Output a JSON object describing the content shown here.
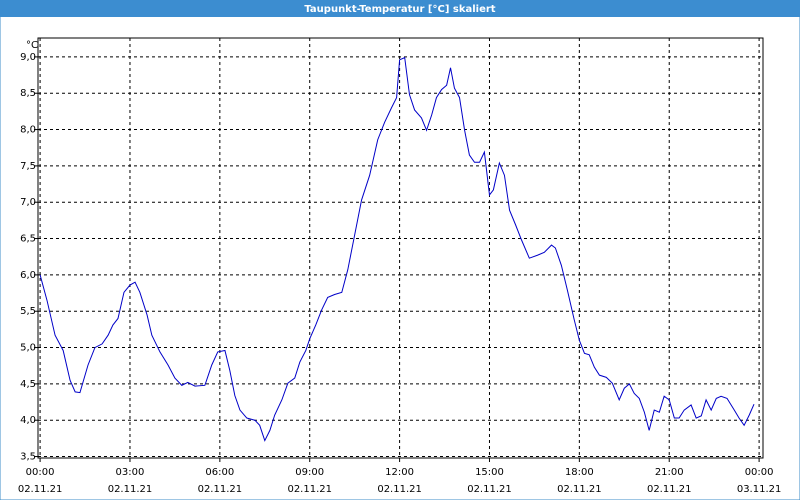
{
  "chart_data": {
    "type": "line",
    "title": "Taupunkt-Temperatur [°C] skaliert",
    "y_unit": "°C",
    "xlim": [
      -0.07,
      24.13
    ],
    "ylim": [
      3.48,
      9.26
    ],
    "xticks": [
      {
        "value": 0,
        "label": "00:00",
        "date": "02.11.21"
      },
      {
        "value": 3,
        "label": "03:00",
        "date": "02.11.21"
      },
      {
        "value": 6,
        "label": "06:00",
        "date": "02.11.21"
      },
      {
        "value": 9,
        "label": "09:00",
        "date": "02.11.21"
      },
      {
        "value": 12,
        "label": "12:00",
        "date": "02.11.21"
      },
      {
        "value": 15,
        "label": "15:00",
        "date": "02.11.21"
      },
      {
        "value": 18,
        "label": "18:00",
        "date": "02.11.21"
      },
      {
        "value": 21,
        "label": "21:00",
        "date": "02.11.21"
      },
      {
        "value": 24,
        "label": "00:00",
        "date": "03.11.21"
      }
    ],
    "yticks": [
      {
        "value": 3.5,
        "label": "3,5"
      },
      {
        "value": 4,
        "label": "4,0"
      },
      {
        "value": 4.5,
        "label": "4,5"
      },
      {
        "value": 5,
        "label": "5,0"
      },
      {
        "value": 5.5,
        "label": "5,5"
      },
      {
        "value": 6,
        "label": "6,0"
      },
      {
        "value": 6.5,
        "label": "6,5"
      },
      {
        "value": 7,
        "label": "7,0"
      },
      {
        "value": 7.5,
        "label": "7,5"
      },
      {
        "value": 8,
        "label": "8,0"
      },
      {
        "value": 8.5,
        "label": "8,5"
      },
      {
        "value": 9,
        "label": "9,0"
      }
    ],
    "grid": true,
    "x": [
      0,
      0.23,
      0.5,
      0.77,
      1.0,
      1.17,
      1.33,
      1.6,
      1.83,
      2.07,
      2.27,
      2.43,
      2.6,
      2.8,
      3.0,
      3.17,
      3.33,
      3.57,
      3.73,
      4.0,
      4.27,
      4.5,
      4.73,
      4.93,
      5.17,
      5.5,
      5.73,
      5.93,
      6.17,
      6.33,
      6.5,
      6.67,
      6.9,
      7.17,
      7.33,
      7.5,
      7.67,
      7.83,
      8.07,
      8.27,
      8.5,
      8.67,
      8.87,
      9.0,
      9.2,
      9.4,
      9.6,
      9.83,
      10.07,
      10.27,
      10.5,
      10.73,
      11.0,
      11.27,
      11.5,
      11.73,
      11.9,
      12.0,
      12.17,
      12.33,
      12.5,
      12.73,
      12.9,
      13.07,
      13.23,
      13.4,
      13.57,
      13.7,
      13.83,
      14.0,
      14.17,
      14.33,
      14.5,
      14.67,
      14.83,
      15.0,
      15.13,
      15.33,
      15.5,
      15.67,
      15.87,
      16.07,
      16.33,
      16.6,
      16.83,
      17.07,
      17.2,
      17.4,
      17.6,
      17.83,
      18.0,
      18.17,
      18.33,
      18.5,
      18.67,
      18.9,
      19.1,
      19.33,
      19.5,
      19.67,
      19.83,
      20.0,
      20.17,
      20.33,
      20.5,
      20.67,
      20.83,
      21.0,
      21.17,
      21.33,
      21.5,
      21.73,
      21.9,
      22.07,
      22.23,
      22.4,
      22.57,
      22.73,
      22.93,
      23.17,
      23.33,
      23.5,
      23.67,
      23.83
    ],
    "series": [
      {
        "name": "Taupunkt-Temperatur",
        "color": "#0000c8",
        "values": [
          6.0,
          5.65,
          5.17,
          4.96,
          4.55,
          4.39,
          4.38,
          4.76,
          5.0,
          5.05,
          5.17,
          5.31,
          5.4,
          5.76,
          5.86,
          5.9,
          5.76,
          5.45,
          5.17,
          4.94,
          4.76,
          4.58,
          4.48,
          4.52,
          4.47,
          4.48,
          4.76,
          4.94,
          4.96,
          4.69,
          4.34,
          4.14,
          4.03,
          4.0,
          3.93,
          3.72,
          3.86,
          4.07,
          4.28,
          4.51,
          4.58,
          4.8,
          4.96,
          5.12,
          5.31,
          5.52,
          5.69,
          5.73,
          5.76,
          6.07,
          6.55,
          7.03,
          7.37,
          7.86,
          8.1,
          8.3,
          8.44,
          8.96,
          8.99,
          8.48,
          8.27,
          8.16,
          7.99,
          8.2,
          8.44,
          8.55,
          8.61,
          8.85,
          8.57,
          8.44,
          7.99,
          7.65,
          7.55,
          7.55,
          7.69,
          7.1,
          7.17,
          7.54,
          7.37,
          6.89,
          6.69,
          6.48,
          6.23,
          6.27,
          6.31,
          6.41,
          6.37,
          6.13,
          5.79,
          5.38,
          5.1,
          4.92,
          4.9,
          4.73,
          4.62,
          4.59,
          4.51,
          4.28,
          4.44,
          4.5,
          4.37,
          4.3,
          4.11,
          3.86,
          4.14,
          4.11,
          4.33,
          4.28,
          4.03,
          4.03,
          4.14,
          4.21,
          4.03,
          4.06,
          4.28,
          4.14,
          4.3,
          4.33,
          4.3,
          4.14,
          4.03,
          3.93,
          4.07,
          4.22
        ]
      }
    ]
  }
}
